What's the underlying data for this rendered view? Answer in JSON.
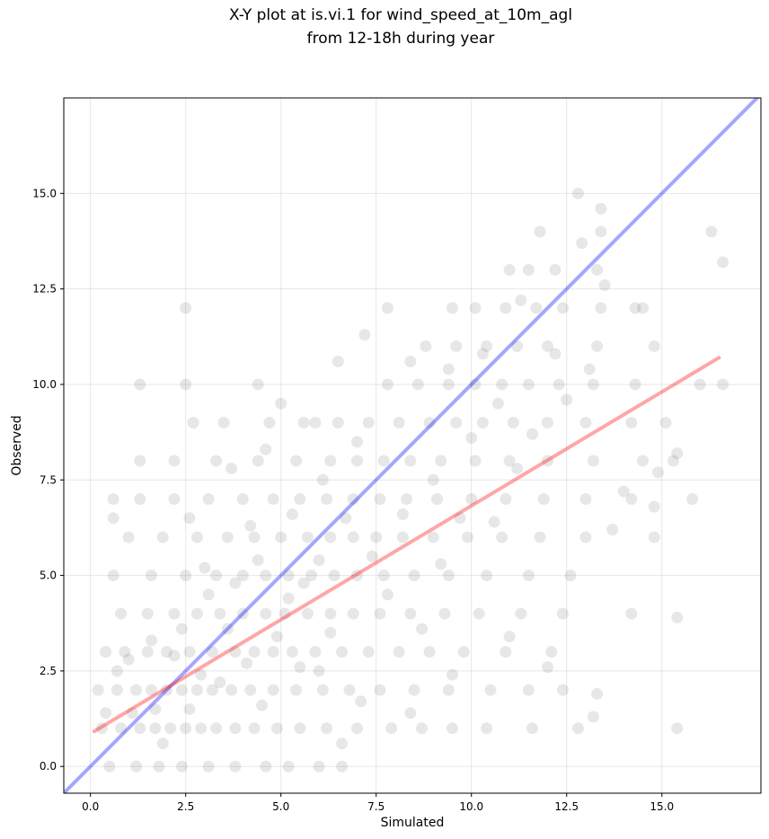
{
  "chart_data": {
    "type": "scatter",
    "title": "X-Y plot at is.vi.1 for wind_speed_at_10m_agl",
    "subtitle": "from 12-18h during year",
    "xlabel": "Simulated",
    "ylabel": "Observed",
    "xlim": [
      -0.7,
      17.6
    ],
    "ylim": [
      -0.7,
      17.5
    ],
    "x_ticks": [
      0.0,
      2.5,
      5.0,
      7.5,
      10.0,
      12.5,
      15.0
    ],
    "y_ticks": [
      0.0,
      2.5,
      5.0,
      7.5,
      10.0,
      12.5,
      15.0
    ],
    "x_tick_labels": [
      "0.0",
      "2.5",
      "5.0",
      "7.5",
      "10.0",
      "12.5",
      "15.0"
    ],
    "y_tick_labels": [
      "0.0",
      "2.5",
      "5.0",
      "7.5",
      "10.0",
      "12.5",
      "15.0"
    ],
    "grid": true,
    "point_color": "#000000",
    "point_alpha": 0.06,
    "series": [
      {
        "type": "scatter",
        "points": [
          [
            0.5,
            0.0
          ],
          [
            1.2,
            0.0
          ],
          [
            1.8,
            0.0
          ],
          [
            2.4,
            0.0
          ],
          [
            3.1,
            0.0
          ],
          [
            3.8,
            0.0
          ],
          [
            4.6,
            0.0
          ],
          [
            5.2,
            0.0
          ],
          [
            6.0,
            0.0
          ],
          [
            6.6,
            0.0
          ],
          [
            0.3,
            1.0
          ],
          [
            0.8,
            1.0
          ],
          [
            1.3,
            1.0
          ],
          [
            1.7,
            1.0
          ],
          [
            2.1,
            1.0
          ],
          [
            2.5,
            1.0
          ],
          [
            2.9,
            1.0
          ],
          [
            3.3,
            1.0
          ],
          [
            3.8,
            1.0
          ],
          [
            4.3,
            1.0
          ],
          [
            4.9,
            1.0
          ],
          [
            5.5,
            1.0
          ],
          [
            6.2,
            1.0
          ],
          [
            7.0,
            1.0
          ],
          [
            7.9,
            1.0
          ],
          [
            8.7,
            1.0
          ],
          [
            9.5,
            1.0
          ],
          [
            10.4,
            1.0
          ],
          [
            11.6,
            1.0
          ],
          [
            12.8,
            1.0
          ],
          [
            15.4,
            1.0
          ],
          [
            0.2,
            2.0
          ],
          [
            0.7,
            2.0
          ],
          [
            1.2,
            2.0
          ],
          [
            1.6,
            2.0
          ],
          [
            2.0,
            2.0
          ],
          [
            2.4,
            2.0
          ],
          [
            2.8,
            2.0
          ],
          [
            3.2,
            2.0
          ],
          [
            3.7,
            2.0
          ],
          [
            4.2,
            2.0
          ],
          [
            4.8,
            2.0
          ],
          [
            5.4,
            2.0
          ],
          [
            6.1,
            2.0
          ],
          [
            6.8,
            2.0
          ],
          [
            7.6,
            2.0
          ],
          [
            8.5,
            2.0
          ],
          [
            9.4,
            2.0
          ],
          [
            10.5,
            2.0
          ],
          [
            11.5,
            2.0
          ],
          [
            12.4,
            2.0
          ],
          [
            0.4,
            3.0
          ],
          [
            0.9,
            3.0
          ],
          [
            1.5,
            3.0
          ],
          [
            2.0,
            3.0
          ],
          [
            2.6,
            3.0
          ],
          [
            3.2,
            3.0
          ],
          [
            3.8,
            3.0
          ],
          [
            4.3,
            3.0
          ],
          [
            4.8,
            3.0
          ],
          [
            5.3,
            3.0
          ],
          [
            5.9,
            3.0
          ],
          [
            6.6,
            3.0
          ],
          [
            7.3,
            3.0
          ],
          [
            8.1,
            3.0
          ],
          [
            8.9,
            3.0
          ],
          [
            9.8,
            3.0
          ],
          [
            10.9,
            3.0
          ],
          [
            12.1,
            3.0
          ],
          [
            0.8,
            4.0
          ],
          [
            1.5,
            4.0
          ],
          [
            2.2,
            4.0
          ],
          [
            2.8,
            4.0
          ],
          [
            3.4,
            4.0
          ],
          [
            4.0,
            4.0
          ],
          [
            4.6,
            4.0
          ],
          [
            5.1,
            4.0
          ],
          [
            5.7,
            4.0
          ],
          [
            6.3,
            4.0
          ],
          [
            6.9,
            4.0
          ],
          [
            7.6,
            4.0
          ],
          [
            8.4,
            4.0
          ],
          [
            9.3,
            4.0
          ],
          [
            10.2,
            4.0
          ],
          [
            11.3,
            4.0
          ],
          [
            12.4,
            4.0
          ],
          [
            14.2,
            4.0
          ],
          [
            0.6,
            5.0
          ],
          [
            1.6,
            5.0
          ],
          [
            2.5,
            5.0
          ],
          [
            3.3,
            5.0
          ],
          [
            4.0,
            5.0
          ],
          [
            4.6,
            5.0
          ],
          [
            5.2,
            5.0
          ],
          [
            5.8,
            5.0
          ],
          [
            6.4,
            5.0
          ],
          [
            7.0,
            5.0
          ],
          [
            7.7,
            5.0
          ],
          [
            8.5,
            5.0
          ],
          [
            9.4,
            5.0
          ],
          [
            10.4,
            5.0
          ],
          [
            11.5,
            5.0
          ],
          [
            12.6,
            5.0
          ],
          [
            1.0,
            6.0
          ],
          [
            1.9,
            6.0
          ],
          [
            2.8,
            6.0
          ],
          [
            3.6,
            6.0
          ],
          [
            4.3,
            6.0
          ],
          [
            5.0,
            6.0
          ],
          [
            5.7,
            6.0
          ],
          [
            6.3,
            6.0
          ],
          [
            6.9,
            6.0
          ],
          [
            7.5,
            6.0
          ],
          [
            8.2,
            6.0
          ],
          [
            9.0,
            6.0
          ],
          [
            9.9,
            6.0
          ],
          [
            10.8,
            6.0
          ],
          [
            11.8,
            6.0
          ],
          [
            13.0,
            6.0
          ],
          [
            14.8,
            6.0
          ],
          [
            0.6,
            7.0
          ],
          [
            1.3,
            7.0
          ],
          [
            2.2,
            7.0
          ],
          [
            3.1,
            7.0
          ],
          [
            4.0,
            7.0
          ],
          [
            4.8,
            7.0
          ],
          [
            5.5,
            7.0
          ],
          [
            6.2,
            7.0
          ],
          [
            6.9,
            7.0
          ],
          [
            7.6,
            7.0
          ],
          [
            8.3,
            7.0
          ],
          [
            9.1,
            7.0
          ],
          [
            10.0,
            7.0
          ],
          [
            10.9,
            7.0
          ],
          [
            11.9,
            7.0
          ],
          [
            13.0,
            7.0
          ],
          [
            14.2,
            7.0
          ],
          [
            15.8,
            7.0
          ],
          [
            1.3,
            8.0
          ],
          [
            2.2,
            8.0
          ],
          [
            3.3,
            8.0
          ],
          [
            4.4,
            8.0
          ],
          [
            5.4,
            8.0
          ],
          [
            6.3,
            8.0
          ],
          [
            7.0,
            8.0
          ],
          [
            7.7,
            8.0
          ],
          [
            8.4,
            8.0
          ],
          [
            9.2,
            8.0
          ],
          [
            10.1,
            8.0
          ],
          [
            11.0,
            8.0
          ],
          [
            12.0,
            8.0
          ],
          [
            13.2,
            8.0
          ],
          [
            14.5,
            8.0
          ],
          [
            15.3,
            8.0
          ],
          [
            2.7,
            9.0
          ],
          [
            3.5,
            9.0
          ],
          [
            4.7,
            9.0
          ],
          [
            5.6,
            9.0
          ],
          [
            6.5,
            9.0
          ],
          [
            7.3,
            9.0
          ],
          [
            8.1,
            9.0
          ],
          [
            8.9,
            9.0
          ],
          [
            9.6,
            9.0
          ],
          [
            10.3,
            9.0
          ],
          [
            11.1,
            9.0
          ],
          [
            12.0,
            9.0
          ],
          [
            13.0,
            9.0
          ],
          [
            14.2,
            9.0
          ],
          [
            15.1,
            9.0
          ],
          [
            1.3,
            10.0
          ],
          [
            2.5,
            10.0
          ],
          [
            4.4,
            10.0
          ],
          [
            7.8,
            10.0
          ],
          [
            8.6,
            10.0
          ],
          [
            9.4,
            10.0
          ],
          [
            10.1,
            10.0
          ],
          [
            10.8,
            10.0
          ],
          [
            11.5,
            10.0
          ],
          [
            12.3,
            10.0
          ],
          [
            13.2,
            10.0
          ],
          [
            14.3,
            10.0
          ],
          [
            16.0,
            10.0
          ],
          [
            16.6,
            10.0
          ],
          [
            8.8,
            11.0
          ],
          [
            9.6,
            11.0
          ],
          [
            10.4,
            11.0
          ],
          [
            11.2,
            11.0
          ],
          [
            12.0,
            11.0
          ],
          [
            13.3,
            11.0
          ],
          [
            14.8,
            11.0
          ],
          [
            2.5,
            12.0
          ],
          [
            7.8,
            12.0
          ],
          [
            9.5,
            12.0
          ],
          [
            10.1,
            12.0
          ],
          [
            10.9,
            12.0
          ],
          [
            11.7,
            12.0
          ],
          [
            12.4,
            12.0
          ],
          [
            13.4,
            12.0
          ],
          [
            14.5,
            12.0
          ],
          [
            11.0,
            13.0
          ],
          [
            11.5,
            13.0
          ],
          [
            12.2,
            13.0
          ],
          [
            13.3,
            13.0
          ],
          [
            11.8,
            14.0
          ],
          [
            13.4,
            14.0
          ],
          [
            16.3,
            14.0
          ],
          [
            12.8,
            15.0
          ],
          [
            13.4,
            14.6
          ],
          [
            16.6,
            13.2
          ],
          [
            12.9,
            13.7
          ],
          [
            13.5,
            12.6
          ],
          [
            14.3,
            12.0
          ],
          [
            15.4,
            8.2
          ],
          [
            15.4,
            3.9
          ],
          [
            13.2,
            1.3
          ],
          [
            13.3,
            1.9
          ],
          [
            12.0,
            2.6
          ],
          [
            14.8,
            6.8
          ],
          [
            14.0,
            7.2
          ],
          [
            13.7,
            6.2
          ],
          [
            14.9,
            7.7
          ],
          [
            11.0,
            3.4
          ],
          [
            9.5,
            2.4
          ],
          [
            8.4,
            1.4
          ],
          [
            6.6,
            0.6
          ],
          [
            7.1,
            1.7
          ],
          [
            5.5,
            2.6
          ],
          [
            4.9,
            3.4
          ],
          [
            4.1,
            2.7
          ],
          [
            3.6,
            3.6
          ],
          [
            2.9,
            2.4
          ],
          [
            2.2,
            2.9
          ],
          [
            1.7,
            1.5
          ],
          [
            1.1,
            1.4
          ],
          [
            0.7,
            2.5
          ],
          [
            0.4,
            1.4
          ],
          [
            0.6,
            6.5
          ],
          [
            2.6,
            6.5
          ],
          [
            3.7,
            7.8
          ],
          [
            4.6,
            8.3
          ],
          [
            5.0,
            9.5
          ],
          [
            5.9,
            9.0
          ],
          [
            6.5,
            10.6
          ],
          [
            7.2,
            11.3
          ],
          [
            8.4,
            10.6
          ],
          [
            9.4,
            10.4
          ],
          [
            10.3,
            10.8
          ],
          [
            11.3,
            12.2
          ],
          [
            12.2,
            10.8
          ],
          [
            6.0,
            5.4
          ],
          [
            6.7,
            6.5
          ],
          [
            7.4,
            5.5
          ],
          [
            8.2,
            6.6
          ],
          [
            9.0,
            7.5
          ],
          [
            9.7,
            6.5
          ],
          [
            10.6,
            6.4
          ],
          [
            11.2,
            7.8
          ],
          [
            5.2,
            4.4
          ],
          [
            4.4,
            5.4
          ],
          [
            3.8,
            4.8
          ],
          [
            3.0,
            5.2
          ],
          [
            2.4,
            3.6
          ],
          [
            1.6,
            3.3
          ],
          [
            1.0,
            2.8
          ],
          [
            7.8,
            4.5
          ],
          [
            8.7,
            3.6
          ],
          [
            6.3,
            3.5
          ],
          [
            5.6,
            4.8
          ],
          [
            3.4,
            2.2
          ],
          [
            2.6,
            1.5
          ],
          [
            1.9,
            0.6
          ],
          [
            4.5,
            1.6
          ],
          [
            6.0,
            2.5
          ],
          [
            9.2,
            5.3
          ],
          [
            10.0,
            8.6
          ],
          [
            10.7,
            9.5
          ],
          [
            11.6,
            8.7
          ],
          [
            12.5,
            9.6
          ],
          [
            13.1,
            10.4
          ],
          [
            7.0,
            8.5
          ],
          [
            6.1,
            7.5
          ],
          [
            5.3,
            6.6
          ],
          [
            4.2,
            6.3
          ],
          [
            3.1,
            4.5
          ]
        ]
      },
      {
        "type": "line",
        "color": "#0000ff",
        "alpha": 0.35,
        "x": [
          -0.7,
          17.6
        ],
        "y": [
          -0.7,
          17.6
        ]
      },
      {
        "type": "line",
        "color": "#ff0000",
        "alpha": 0.35,
        "x": [
          0.1,
          16.5
        ],
        "y": [
          0.92,
          10.7
        ]
      }
    ]
  }
}
